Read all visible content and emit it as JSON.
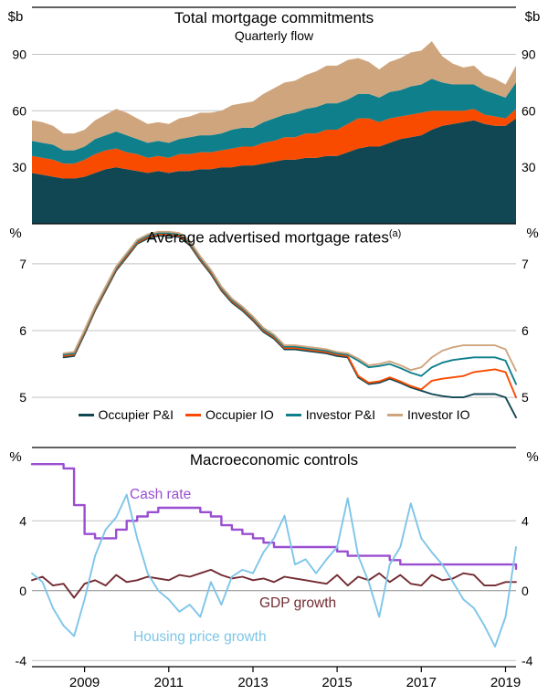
{
  "x_axis": {
    "years": [
      "2009",
      "2011",
      "2013",
      "2015",
      "2017",
      "2019"
    ],
    "domain": [
      2007.75,
      2019.25
    ]
  },
  "chart_data": [
    {
      "type": "stacked-area",
      "title": "Total mortgage commitments",
      "subtitle": "Quarterly flow",
      "unit_left": "$b",
      "unit_right": "$b",
      "x_start": 2007.75,
      "x_step": 0.25,
      "ylim": [
        0,
        115
      ],
      "yticks": [
        30,
        60,
        90
      ],
      "series": [
        {
          "name": "Occupier P&I",
          "color": "#114753",
          "values": [
            27,
            26,
            25,
            24,
            24,
            25,
            27,
            29,
            30,
            29,
            28,
            27,
            28,
            27,
            28,
            28,
            29,
            29,
            30,
            30,
            31,
            31,
            32,
            33,
            34,
            34,
            35,
            35,
            36,
            36,
            38,
            40,
            41,
            41,
            43,
            45,
            46,
            47,
            50,
            52,
            53,
            54,
            55,
            53,
            52,
            52,
            56
          ]
        },
        {
          "name": "Occupier IO",
          "color": "#f84b00",
          "values": [
            9,
            9,
            9,
            8,
            8,
            9,
            10,
            10,
            10,
            9,
            9,
            8,
            8,
            8,
            9,
            9,
            9,
            9,
            9,
            10,
            10,
            10,
            11,
            11,
            12,
            12,
            13,
            13,
            14,
            14,
            15,
            16,
            15,
            13,
            13,
            12,
            12,
            12,
            10,
            8,
            7,
            6,
            6,
            5,
            5,
            4,
            5
          ]
        },
        {
          "name": "Investor P&I",
          "color": "#0f7f8c",
          "values": [
            8,
            8,
            8,
            7,
            7,
            7,
            8,
            8,
            9,
            9,
            8,
            8,
            8,
            8,
            8,
            9,
            9,
            9,
            9,
            10,
            10,
            10,
            11,
            12,
            12,
            13,
            13,
            14,
            14,
            14,
            13,
            13,
            13,
            13,
            14,
            14,
            15,
            15,
            17,
            15,
            14,
            14,
            13,
            13,
            12,
            11,
            14
          ]
        },
        {
          "name": "Investor IO",
          "color": "#cfa57e",
          "values": [
            11,
            11,
            10,
            9,
            9,
            9,
            10,
            11,
            12,
            12,
            11,
            10,
            10,
            10,
            11,
            11,
            12,
            12,
            12,
            13,
            13,
            14,
            15,
            16,
            17,
            17,
            18,
            19,
            20,
            20,
            21,
            19,
            17,
            15,
            16,
            17,
            18,
            18,
            20,
            14,
            11,
            9,
            10,
            8,
            8,
            7,
            9
          ]
        }
      ]
    },
    {
      "type": "line",
      "title": "Average advertised mortgage rates",
      "title_sup": "(a)",
      "unit_left": "%",
      "unit_right": "%",
      "x_start": 2007.75,
      "x_step": 0.25,
      "ylim": [
        4.25,
        7.6
      ],
      "yticks": [
        5,
        6,
        7
      ],
      "series": [
        {
          "name": "Occupier P&I",
          "color": "#114753",
          "values": [
            null,
            null,
            null,
            5.6,
            5.62,
            5.95,
            6.3,
            6.6,
            6.9,
            7.1,
            7.3,
            7.38,
            7.42,
            7.42,
            7.4,
            7.28,
            7.05,
            6.85,
            6.6,
            6.42,
            6.3,
            6.15,
            5.98,
            5.88,
            5.72,
            5.72,
            5.7,
            5.68,
            5.66,
            5.62,
            5.6,
            5.3,
            5.2,
            5.22,
            5.28,
            5.22,
            5.15,
            5.1,
            5.05,
            5.02,
            5.0,
            5.0,
            5.05,
            5.05,
            5.05,
            5.0,
            4.7
          ]
        },
        {
          "name": "Occupier IO",
          "color": "#f84b00",
          "values": [
            null,
            null,
            null,
            5.62,
            5.64,
            5.97,
            6.32,
            6.62,
            6.92,
            7.12,
            7.32,
            7.4,
            7.44,
            7.44,
            7.42,
            7.3,
            7.07,
            6.87,
            6.62,
            6.44,
            6.32,
            6.17,
            6.0,
            5.9,
            5.74,
            5.74,
            5.72,
            5.7,
            5.68,
            5.64,
            5.62,
            5.32,
            5.22,
            5.24,
            5.3,
            5.24,
            5.17,
            5.12,
            5.25,
            5.28,
            5.3,
            5.32,
            5.38,
            5.4,
            5.42,
            5.38,
            5.0
          ]
        },
        {
          "name": "Investor P&I",
          "color": "#0f7f8c",
          "values": [
            null,
            null,
            null,
            5.64,
            5.66,
            5.99,
            6.34,
            6.64,
            6.94,
            7.14,
            7.34,
            7.42,
            7.46,
            7.46,
            7.44,
            7.32,
            7.09,
            6.89,
            6.64,
            6.46,
            6.34,
            6.19,
            6.02,
            5.92,
            5.76,
            5.76,
            5.74,
            5.72,
            5.7,
            5.66,
            5.64,
            5.55,
            5.45,
            5.47,
            5.5,
            5.44,
            5.37,
            5.32,
            5.45,
            5.52,
            5.56,
            5.58,
            5.6,
            5.6,
            5.6,
            5.55,
            5.2
          ]
        },
        {
          "name": "Investor IO",
          "color": "#cfa57e",
          "values": [
            null,
            null,
            null,
            5.66,
            5.68,
            6.01,
            6.36,
            6.66,
            6.96,
            7.16,
            7.36,
            7.44,
            7.48,
            7.48,
            7.46,
            7.34,
            7.11,
            6.91,
            6.66,
            6.48,
            6.36,
            6.21,
            6.04,
            5.94,
            5.78,
            5.78,
            5.76,
            5.74,
            5.72,
            5.68,
            5.66,
            5.58,
            5.48,
            5.5,
            5.54,
            5.48,
            5.41,
            5.45,
            5.6,
            5.7,
            5.75,
            5.78,
            5.78,
            5.78,
            5.78,
            5.72,
            5.4
          ]
        }
      ]
    },
    {
      "type": "line",
      "title": "Macroeconomic controls",
      "unit_left": "%",
      "unit_right": "%",
      "x_start": 2007.75,
      "x_step": 0.25,
      "ylim": [
        -4.35,
        8.2
      ],
      "yticks": [
        -4,
        0,
        4
      ],
      "zero_line": true,
      "series": [
        {
          "name": "Cash rate",
          "color": "#9a4fd1",
          "style": "step",
          "values": [
            7.25,
            7.25,
            7.25,
            7.0,
            4.9,
            3.25,
            3.0,
            3.0,
            3.5,
            4.0,
            4.25,
            4.5,
            4.75,
            4.75,
            4.75,
            4.75,
            4.5,
            4.25,
            3.75,
            3.5,
            3.25,
            3.0,
            2.75,
            2.5,
            2.5,
            2.5,
            2.5,
            2.5,
            2.5,
            2.25,
            2.0,
            2.0,
            2.0,
            2.0,
            1.75,
            1.5,
            1.5,
            1.5,
            1.5,
            1.5,
            1.5,
            1.5,
            1.5,
            1.5,
            1.5,
            1.5,
            1.25
          ]
        },
        {
          "name": "GDP growth",
          "color": "#722b31",
          "values": [
            0.6,
            0.8,
            0.3,
            0.4,
            -0.4,
            0.4,
            0.6,
            0.3,
            0.9,
            0.5,
            0.6,
            0.8,
            0.7,
            0.6,
            0.9,
            0.8,
            1.0,
            1.2,
            0.9,
            0.7,
            0.8,
            0.6,
            0.7,
            0.5,
            0.8,
            0.7,
            0.6,
            0.5,
            0.4,
            0.9,
            0.3,
            0.8,
            0.6,
            1.0,
            0.5,
            0.9,
            0.4,
            0.3,
            0.9,
            0.6,
            0.7,
            1.0,
            0.9,
            0.3,
            0.3,
            0.5,
            0.5
          ]
        },
        {
          "name": "Housing price growth",
          "color": "#7ec5e8",
          "values": [
            1.0,
            0.5,
            -1.0,
            -2.0,
            -2.6,
            -0.5,
            2.0,
            3.5,
            4.2,
            5.5,
            3.0,
            1.0,
            0.0,
            -0.5,
            -1.2,
            -0.8,
            -1.5,
            0.5,
            -0.8,
            0.8,
            1.2,
            1.0,
            2.2,
            3.0,
            4.3,
            1.5,
            1.8,
            1.0,
            1.8,
            2.5,
            5.3,
            2.0,
            0.5,
            -1.5,
            1.5,
            2.5,
            5.0,
            3.0,
            2.2,
            1.5,
            0.5,
            -0.5,
            -1.0,
            -2.0,
            -3.2,
            -1.5,
            2.5
          ]
        }
      ],
      "annotations": [
        {
          "text": "Cash rate"
        },
        {
          "text": "GDP growth"
        },
        {
          "text": "Housing price growth"
        }
      ]
    }
  ]
}
